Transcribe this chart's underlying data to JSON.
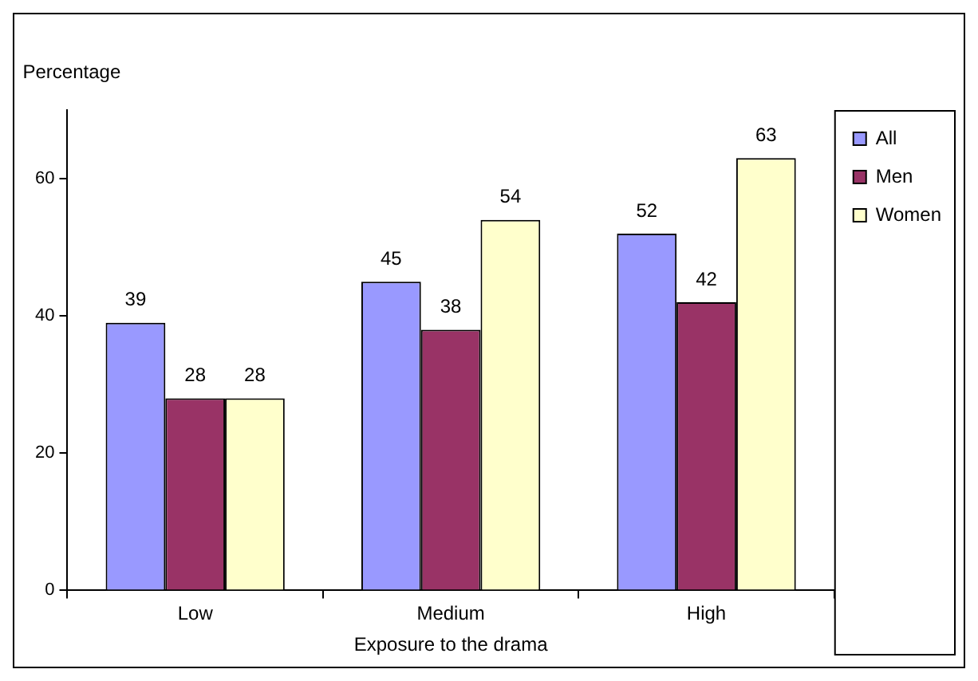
{
  "chart_data": {
    "type": "bar",
    "ylabel": "Percentage",
    "xlabel": "Exposure to the drama",
    "categories": [
      "Low",
      "Medium",
      "High"
    ],
    "series": [
      {
        "name": "All",
        "color": "#9999ff",
        "values": [
          39,
          45,
          52
        ]
      },
      {
        "name": "Men",
        "color": "#993366",
        "values": [
          28,
          38,
          42
        ]
      },
      {
        "name": "Women",
        "color": "#ffffcc",
        "values": [
          28,
          54,
          63
        ]
      }
    ],
    "ylim": [
      0,
      70
    ],
    "yticks": [
      0,
      20,
      40,
      60
    ],
    "grid": false,
    "legend": "top right",
    "data_labels": true
  }
}
